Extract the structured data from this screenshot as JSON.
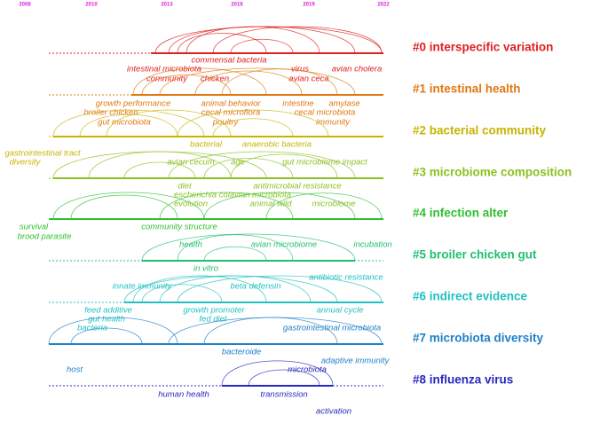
{
  "years": [
    "2008",
    "2010",
    "2013",
    "2016",
    "2019",
    "2022"
  ],
  "clusters": [
    {
      "label": "#0 interspecific variation",
      "color": "#e02020",
      "keywords": [
        "commensal bacteria",
        "virus",
        "avian cholera",
        "intestinal microbiota",
        "community",
        "chicken",
        "avian ceca"
      ]
    },
    {
      "label": "#1 intestinal health",
      "color": "#e07810",
      "keywords": [
        "growth performance",
        "animal behavior",
        "intestine",
        "amylase",
        "broiler chicken",
        "cecal microflora",
        "cecal microbiota",
        "gut microbiota",
        "poultry",
        "immunity"
      ]
    },
    {
      "label": "#2 bacterial community",
      "color": "#c8b400",
      "keywords": [
        "bacterial",
        "anaerobic bacteria",
        "gastrointestinal tract",
        "diversity"
      ]
    },
    {
      "label": "#3 microbiome composition",
      "color": "#8cc020",
      "keywords": [
        "avian cecum",
        "age",
        "gut microbiome impact",
        "diet",
        "antimicrobial resistance",
        "escherichia colavian microbiota",
        "evolution",
        "animal wild",
        "microbiome"
      ]
    },
    {
      "label": "#4 infection alter",
      "color": "#30c030",
      "keywords": [
        "survival",
        "brood parasite",
        "community structure"
      ]
    },
    {
      "label": "#5 broiler chicken gut",
      "color": "#20c070",
      "keywords": [
        "health",
        "avian microbiome",
        "incubation",
        "in vitro"
      ]
    },
    {
      "label": "#6 indirect evidence",
      "color": "#20c0c0",
      "keywords": [
        "antibiotic resistance",
        "innate immunity",
        "beta defensin",
        "feed additive",
        "growth promoter",
        "annual cycle",
        "gut health",
        "fed diet",
        "bacteria"
      ]
    },
    {
      "label": "#7 microbiota diversity",
      "color": "#2080c8",
      "keywords": [
        "gastrointestinal microbiota",
        "bacteroide",
        "host",
        "adaptive immunity"
      ]
    },
    {
      "label": "#8 influenza virus",
      "color": "#2828c0",
      "keywords": [
        "microbiota",
        "human health",
        "transmission",
        "activation"
      ]
    }
  ]
}
